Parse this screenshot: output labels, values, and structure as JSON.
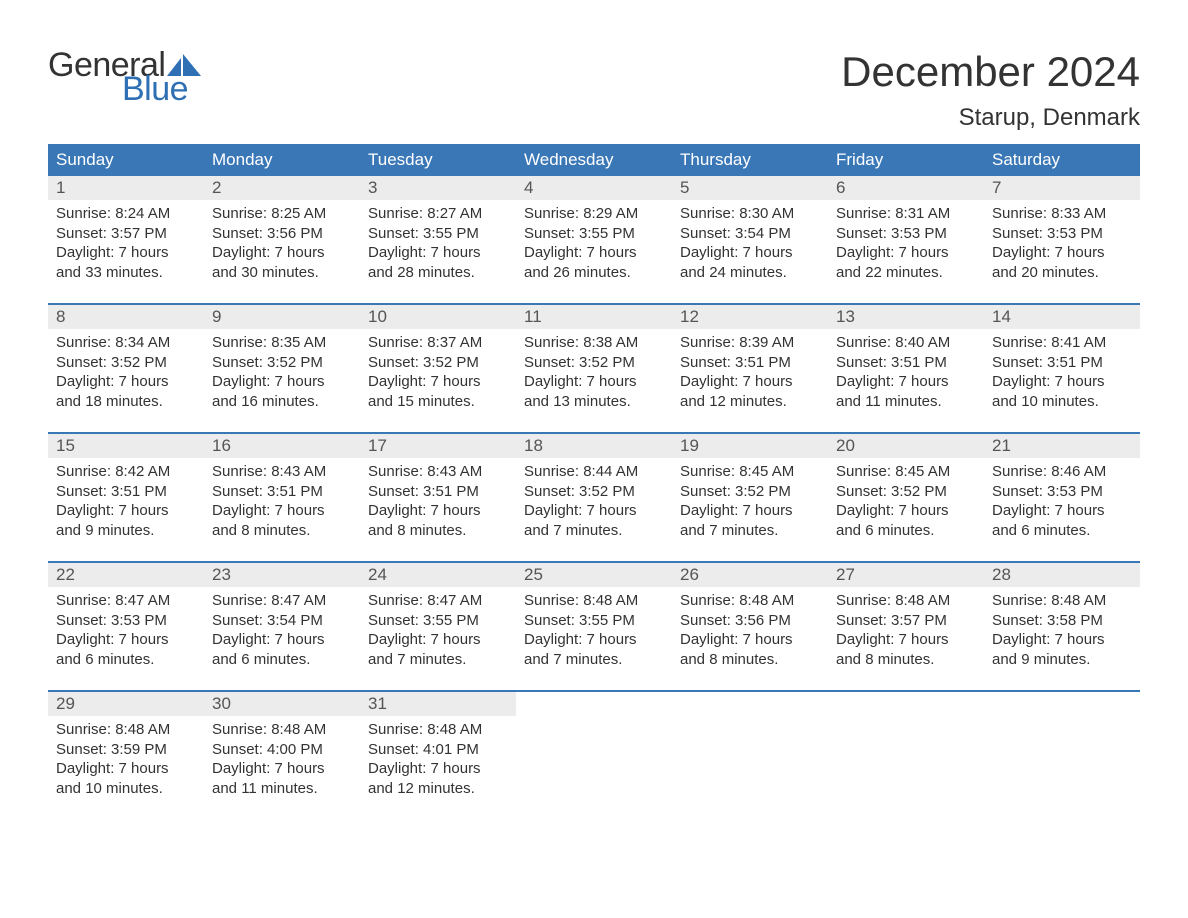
{
  "brand": {
    "line1": "General",
    "line2": "Blue",
    "text_color": "#333333",
    "accent_color": "#2f6fb4"
  },
  "title": "December 2024",
  "location": "Starup, Denmark",
  "colors": {
    "header_bg": "#3a77b7",
    "header_text": "#ffffff",
    "daynum_bg": "#ececec",
    "daynum_text": "#555555",
    "body_text": "#333333",
    "rule": "#3a77b7",
    "page_bg": "#ffffff"
  },
  "typography": {
    "title_fontsize": 42,
    "location_fontsize": 24,
    "header_fontsize": 17,
    "daynum_fontsize": 17,
    "cell_fontsize": 15
  },
  "day_headers": [
    "Sunday",
    "Monday",
    "Tuesday",
    "Wednesday",
    "Thursday",
    "Friday",
    "Saturday"
  ],
  "weeks": [
    [
      {
        "n": "1",
        "sunrise": "Sunrise: 8:24 AM",
        "sunset": "Sunset: 3:57 PM",
        "d1": "Daylight: 7 hours",
        "d2": "and 33 minutes."
      },
      {
        "n": "2",
        "sunrise": "Sunrise: 8:25 AM",
        "sunset": "Sunset: 3:56 PM",
        "d1": "Daylight: 7 hours",
        "d2": "and 30 minutes."
      },
      {
        "n": "3",
        "sunrise": "Sunrise: 8:27 AM",
        "sunset": "Sunset: 3:55 PM",
        "d1": "Daylight: 7 hours",
        "d2": "and 28 minutes."
      },
      {
        "n": "4",
        "sunrise": "Sunrise: 8:29 AM",
        "sunset": "Sunset: 3:55 PM",
        "d1": "Daylight: 7 hours",
        "d2": "and 26 minutes."
      },
      {
        "n": "5",
        "sunrise": "Sunrise: 8:30 AM",
        "sunset": "Sunset: 3:54 PM",
        "d1": "Daylight: 7 hours",
        "d2": "and 24 minutes."
      },
      {
        "n": "6",
        "sunrise": "Sunrise: 8:31 AM",
        "sunset": "Sunset: 3:53 PM",
        "d1": "Daylight: 7 hours",
        "d2": "and 22 minutes."
      },
      {
        "n": "7",
        "sunrise": "Sunrise: 8:33 AM",
        "sunset": "Sunset: 3:53 PM",
        "d1": "Daylight: 7 hours",
        "d2": "and 20 minutes."
      }
    ],
    [
      {
        "n": "8",
        "sunrise": "Sunrise: 8:34 AM",
        "sunset": "Sunset: 3:52 PM",
        "d1": "Daylight: 7 hours",
        "d2": "and 18 minutes."
      },
      {
        "n": "9",
        "sunrise": "Sunrise: 8:35 AM",
        "sunset": "Sunset: 3:52 PM",
        "d1": "Daylight: 7 hours",
        "d2": "and 16 minutes."
      },
      {
        "n": "10",
        "sunrise": "Sunrise: 8:37 AM",
        "sunset": "Sunset: 3:52 PM",
        "d1": "Daylight: 7 hours",
        "d2": "and 15 minutes."
      },
      {
        "n": "11",
        "sunrise": "Sunrise: 8:38 AM",
        "sunset": "Sunset: 3:52 PM",
        "d1": "Daylight: 7 hours",
        "d2": "and 13 minutes."
      },
      {
        "n": "12",
        "sunrise": "Sunrise: 8:39 AM",
        "sunset": "Sunset: 3:51 PM",
        "d1": "Daylight: 7 hours",
        "d2": "and 12 minutes."
      },
      {
        "n": "13",
        "sunrise": "Sunrise: 8:40 AM",
        "sunset": "Sunset: 3:51 PM",
        "d1": "Daylight: 7 hours",
        "d2": "and 11 minutes."
      },
      {
        "n": "14",
        "sunrise": "Sunrise: 8:41 AM",
        "sunset": "Sunset: 3:51 PM",
        "d1": "Daylight: 7 hours",
        "d2": "and 10 minutes."
      }
    ],
    [
      {
        "n": "15",
        "sunrise": "Sunrise: 8:42 AM",
        "sunset": "Sunset: 3:51 PM",
        "d1": "Daylight: 7 hours",
        "d2": "and 9 minutes."
      },
      {
        "n": "16",
        "sunrise": "Sunrise: 8:43 AM",
        "sunset": "Sunset: 3:51 PM",
        "d1": "Daylight: 7 hours",
        "d2": "and 8 minutes."
      },
      {
        "n": "17",
        "sunrise": "Sunrise: 8:43 AM",
        "sunset": "Sunset: 3:51 PM",
        "d1": "Daylight: 7 hours",
        "d2": "and 8 minutes."
      },
      {
        "n": "18",
        "sunrise": "Sunrise: 8:44 AM",
        "sunset": "Sunset: 3:52 PM",
        "d1": "Daylight: 7 hours",
        "d2": "and 7 minutes."
      },
      {
        "n": "19",
        "sunrise": "Sunrise: 8:45 AM",
        "sunset": "Sunset: 3:52 PM",
        "d1": "Daylight: 7 hours",
        "d2": "and 7 minutes."
      },
      {
        "n": "20",
        "sunrise": "Sunrise: 8:45 AM",
        "sunset": "Sunset: 3:52 PM",
        "d1": "Daylight: 7 hours",
        "d2": "and 6 minutes."
      },
      {
        "n": "21",
        "sunrise": "Sunrise: 8:46 AM",
        "sunset": "Sunset: 3:53 PM",
        "d1": "Daylight: 7 hours",
        "d2": "and 6 minutes."
      }
    ],
    [
      {
        "n": "22",
        "sunrise": "Sunrise: 8:47 AM",
        "sunset": "Sunset: 3:53 PM",
        "d1": "Daylight: 7 hours",
        "d2": "and 6 minutes."
      },
      {
        "n": "23",
        "sunrise": "Sunrise: 8:47 AM",
        "sunset": "Sunset: 3:54 PM",
        "d1": "Daylight: 7 hours",
        "d2": "and 6 minutes."
      },
      {
        "n": "24",
        "sunrise": "Sunrise: 8:47 AM",
        "sunset": "Sunset: 3:55 PM",
        "d1": "Daylight: 7 hours",
        "d2": "and 7 minutes."
      },
      {
        "n": "25",
        "sunrise": "Sunrise: 8:48 AM",
        "sunset": "Sunset: 3:55 PM",
        "d1": "Daylight: 7 hours",
        "d2": "and 7 minutes."
      },
      {
        "n": "26",
        "sunrise": "Sunrise: 8:48 AM",
        "sunset": "Sunset: 3:56 PM",
        "d1": "Daylight: 7 hours",
        "d2": "and 8 minutes."
      },
      {
        "n": "27",
        "sunrise": "Sunrise: 8:48 AM",
        "sunset": "Sunset: 3:57 PM",
        "d1": "Daylight: 7 hours",
        "d2": "and 8 minutes."
      },
      {
        "n": "28",
        "sunrise": "Sunrise: 8:48 AM",
        "sunset": "Sunset: 3:58 PM",
        "d1": "Daylight: 7 hours",
        "d2": "and 9 minutes."
      }
    ],
    [
      {
        "n": "29",
        "sunrise": "Sunrise: 8:48 AM",
        "sunset": "Sunset: 3:59 PM",
        "d1": "Daylight: 7 hours",
        "d2": "and 10 minutes."
      },
      {
        "n": "30",
        "sunrise": "Sunrise: 8:48 AM",
        "sunset": "Sunset: 4:00 PM",
        "d1": "Daylight: 7 hours",
        "d2": "and 11 minutes."
      },
      {
        "n": "31",
        "sunrise": "Sunrise: 8:48 AM",
        "sunset": "Sunset: 4:01 PM",
        "d1": "Daylight: 7 hours",
        "d2": "and 12 minutes."
      },
      null,
      null,
      null,
      null
    ]
  ]
}
